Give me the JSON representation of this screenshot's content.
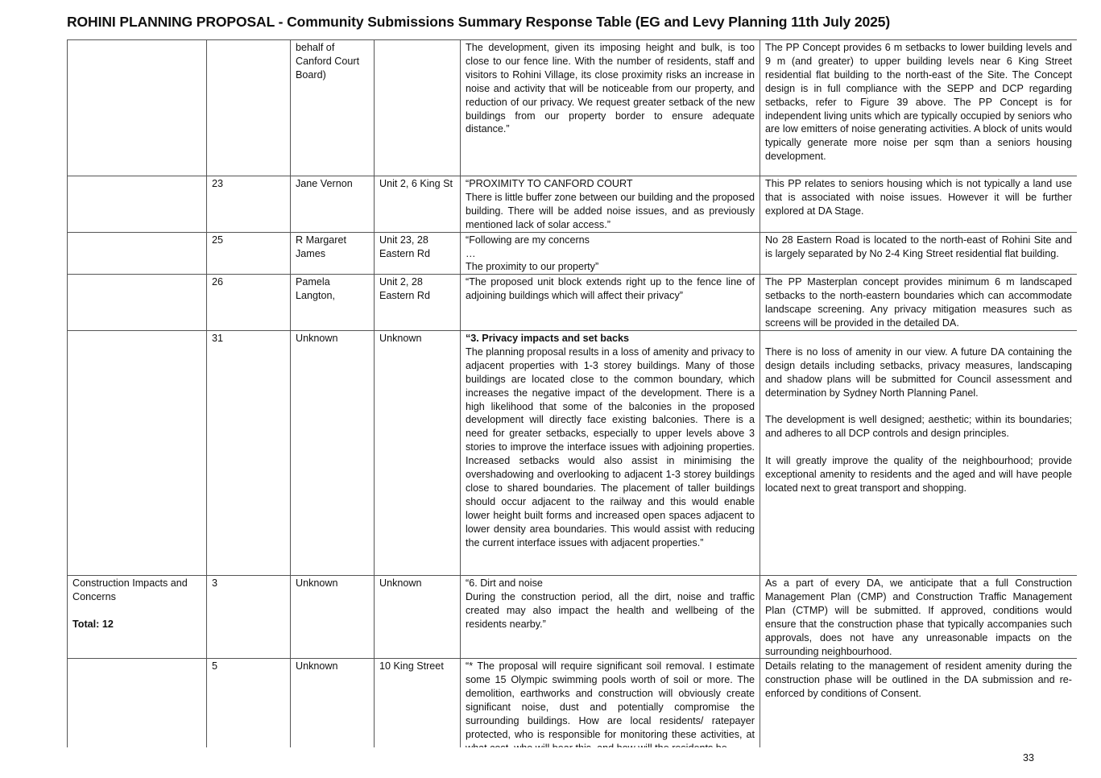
{
  "title": "ROHINI PLANNING PROPOSAL  - Community Submissions  Summary Response Table (EG and Levy Planning 11th July 2025)",
  "page_number": "33",
  "rows": [
    {
      "category": "",
      "category_total": "",
      "no": "",
      "name": "behalf of\nCanford Court\nBoard)",
      "address": "",
      "submission_heading": "",
      "submission": "The development, given its imposing height and bulk, is too close to our fence line. With the number of residents, staff and visitors to Rohini Village, its close proximity risks an increase in noise and activity that will be noticeable from our property, and reduction of our privacy. We request greater setback of the new buildings from our property border to ensure adequate distance.”",
      "response": "The PP Concept provides 6 m setbacks to lower building levels and 9 m (and greater) to upper building levels near 6 King Street residential flat building to the north-east of the Site. The Concept design  is in full compliance with the SEPP and DCP regarding setbacks, refer to Figure 39 above.   The PP Concept is for independent living units which are typically occupied by seniors who are low emitters of noise generating activities. A block of units would typically generate more noise per sqm than a seniors housing development."
    },
    {
      "category": "",
      "category_total": "",
      "no": "23",
      "name": "Jane Vernon",
      "address": "Unit 2, 6 King St",
      "submission_heading": "",
      "submission": "“PROXIMITY TO CANFORD COURT\nThere is little buffer zone between our building and the proposed building. There will be added noise issues, and as previously mentioned lack of solar access.”",
      "response": "This PP relates to seniors housing which is not typically a land use that is associated with noise issues. However it will be further explored at DA Stage."
    },
    {
      "category": "",
      "category_total": "",
      "no": "25",
      "name": "R Margaret\nJames",
      "address": "Unit 23, 28\nEastern Rd",
      "submission_heading": "",
      "submission": "“Following are my concerns\n…\nThe proximity to our property”",
      "response": "No 28 Eastern Road is located to the north-east of Rohini Site and is largely separated by No 2-4 King Street residential flat building."
    },
    {
      "category": "",
      "category_total": "",
      "no": "26",
      "name": "Pamela\nLangton,",
      "address": "Unit 2, 28\nEastern Rd",
      "submission_heading": "",
      "submission": "“The proposed unit block extends right up to the fence line of adjoining buildings which will affect their privacy”",
      "response": "The PP Masterplan concept provides minimum 6 m landscaped setbacks to the north-eastern boundaries which can accommodate landscape screening.  Any privacy mitigation measures such as screens will be provided in the detailed DA."
    },
    {
      "category": "",
      "category_total": "",
      "no": "31",
      "name": "Unknown",
      "address": "Unknown",
      "submission_heading": "“3. Privacy impacts and set backs",
      "submission": "The planning proposal results in a loss of amenity and privacy to adjacent properties with 1-3 storey buildings. Many of those buildings are located close to the common boundary, which increases the negative impact of the development. There is a high likelihood that some of the balconies in the proposed development will directly face existing balconies. There is a need for greater setbacks, especially to upper levels above 3 stories to improve the interface issues with adjoining properties. Increased setbacks would also assist in minimising the overshadowing and overlooking to adjacent 1-3 storey buildings close to shared boundaries. The placement of taller buildings should occur adjacent to the railway and this would enable lower height built forms and increased open spaces adjacent to lower density area boundaries. This would assist with reducing the current interface issues with adjacent properties.”",
      "response": "\nThere is no loss of amenity in our view. A future  DA containing the design details including setbacks, privacy measures, landscaping and shadow plans will be submitted for Council assessment and determination by Sydney North Planning Panel.\n\nThe development is well designed; aesthetic; within its boundaries; and adheres to all DCP controls and design principles.\n\nIt will greatly improve the quality of the neighbourhood; provide exceptional amenity to residents and the aged and will have people located next to great transport and shopping."
    },
    {
      "category": "Construction Impacts and Concerns",
      "category_total": "Total: 12",
      "no": "3",
      "name": "Unknown",
      "address": "Unknown",
      "submission_heading": "",
      "submission": "“6. Dirt and noise\nDuring the construction period, all the dirt, noise and traffic created may also impact the health and wellbeing of the residents nearby.”",
      "response": "As a part of every DA, we anticipate that a full Construction Management Plan (CMP) and Construction Traffic Management Plan (CTMP) will be submitted. If approved, conditions would ensure that the construction phase that typically accompanies such approvals,  does not have any unreasonable impacts on the surrounding neighbourhood."
    },
    {
      "category": "",
      "category_total": "",
      "no": "5",
      "name": "Unknown",
      "address": "10 King Street",
      "submission_heading": "",
      "submission": "“* The proposal will require significant soil removal. I estimate some 15 Olympic swimming pools worth of soil or more. The demolition, earthworks and construction will obviously create significant noise, dust and potentially compromise the surrounding buildings. How are local residents/ ratepayer protected, who is responsible for monitoring these activities, at what cost, who will bear this, and how will the residents be",
      "response": "Details relating to the management of resident amenity during the construction phase will be outlined in the DA submission and re-enforced by conditions of Consent."
    }
  ]
}
